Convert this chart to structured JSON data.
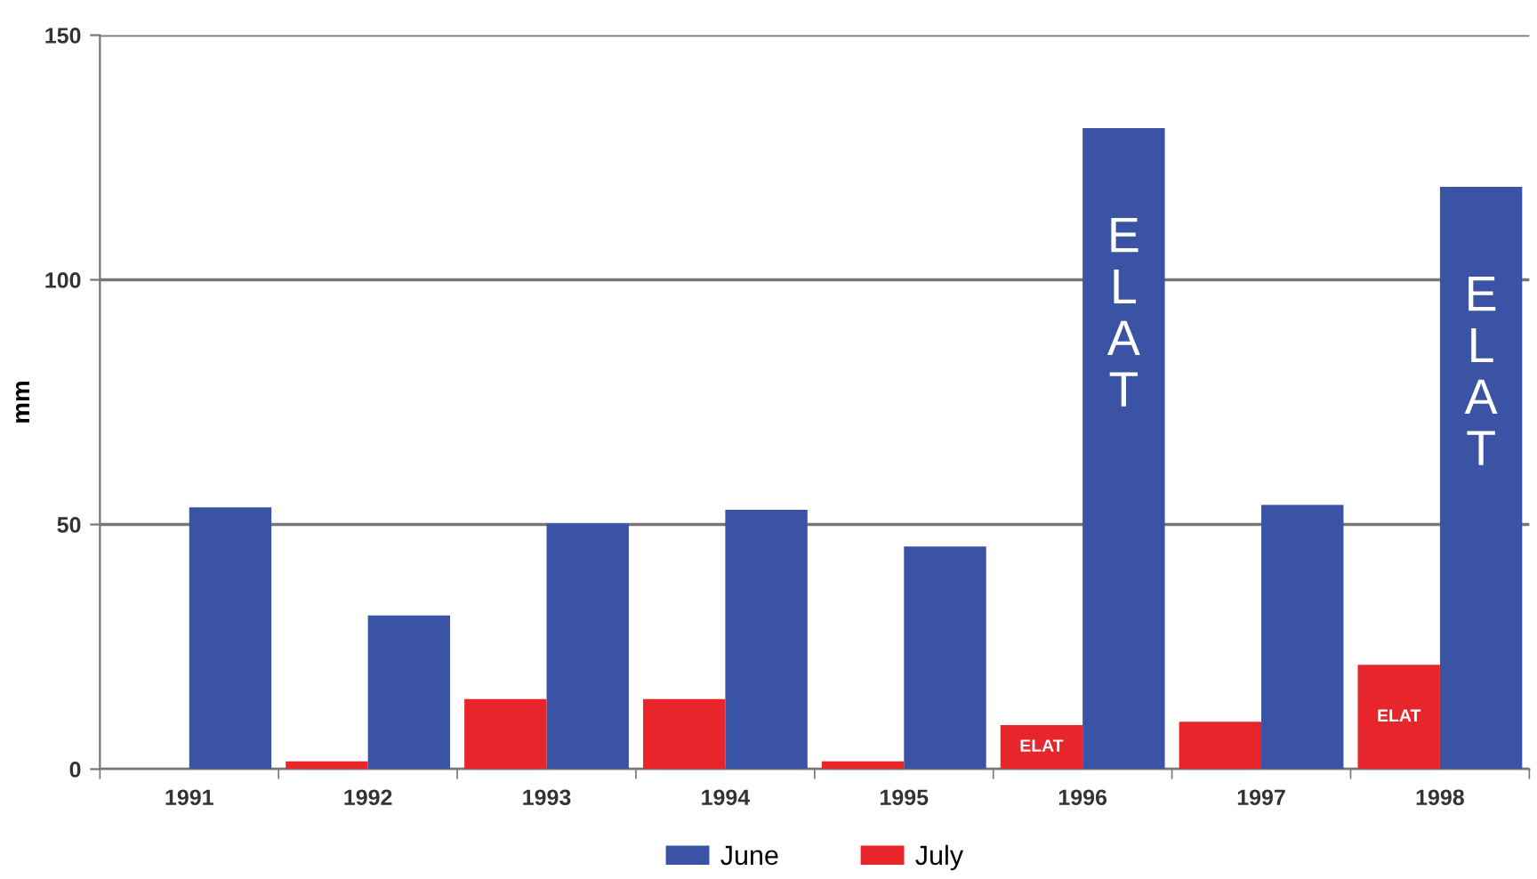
{
  "chart_data": {
    "type": "bar",
    "ylabel": "mm",
    "categories": [
      "1991",
      "1992",
      "1993",
      "1994",
      "1995",
      "1996",
      "1997",
      "1998"
    ],
    "series": [
      {
        "name": "June",
        "color": "#3a53a4",
        "values": [
          53.5,
          31.4,
          50.2,
          53,
          45.5,
          131,
          54,
          119
        ]
      },
      {
        "name": "July",
        "color": "#e8252b",
        "values": [
          null,
          1.6,
          14.3,
          14.3,
          1.6,
          9,
          9.7,
          21.3
        ]
      }
    ],
    "ylim": [
      0,
      150
    ],
    "yticks": [
      0,
      50,
      100,
      150
    ],
    "grid": "y",
    "legend": "bottom",
    "annotations": [
      {
        "text": "ELAT",
        "x": "1996",
        "y": 131
      },
      {
        "text": "ELAT",
        "x": "1998",
        "y": 119
      },
      {
        "text": "ELAT",
        "x": "1996",
        "y": 9
      },
      {
        "text": "ELAT",
        "x": "1998",
        "y": 21.3
      }
    ]
  }
}
